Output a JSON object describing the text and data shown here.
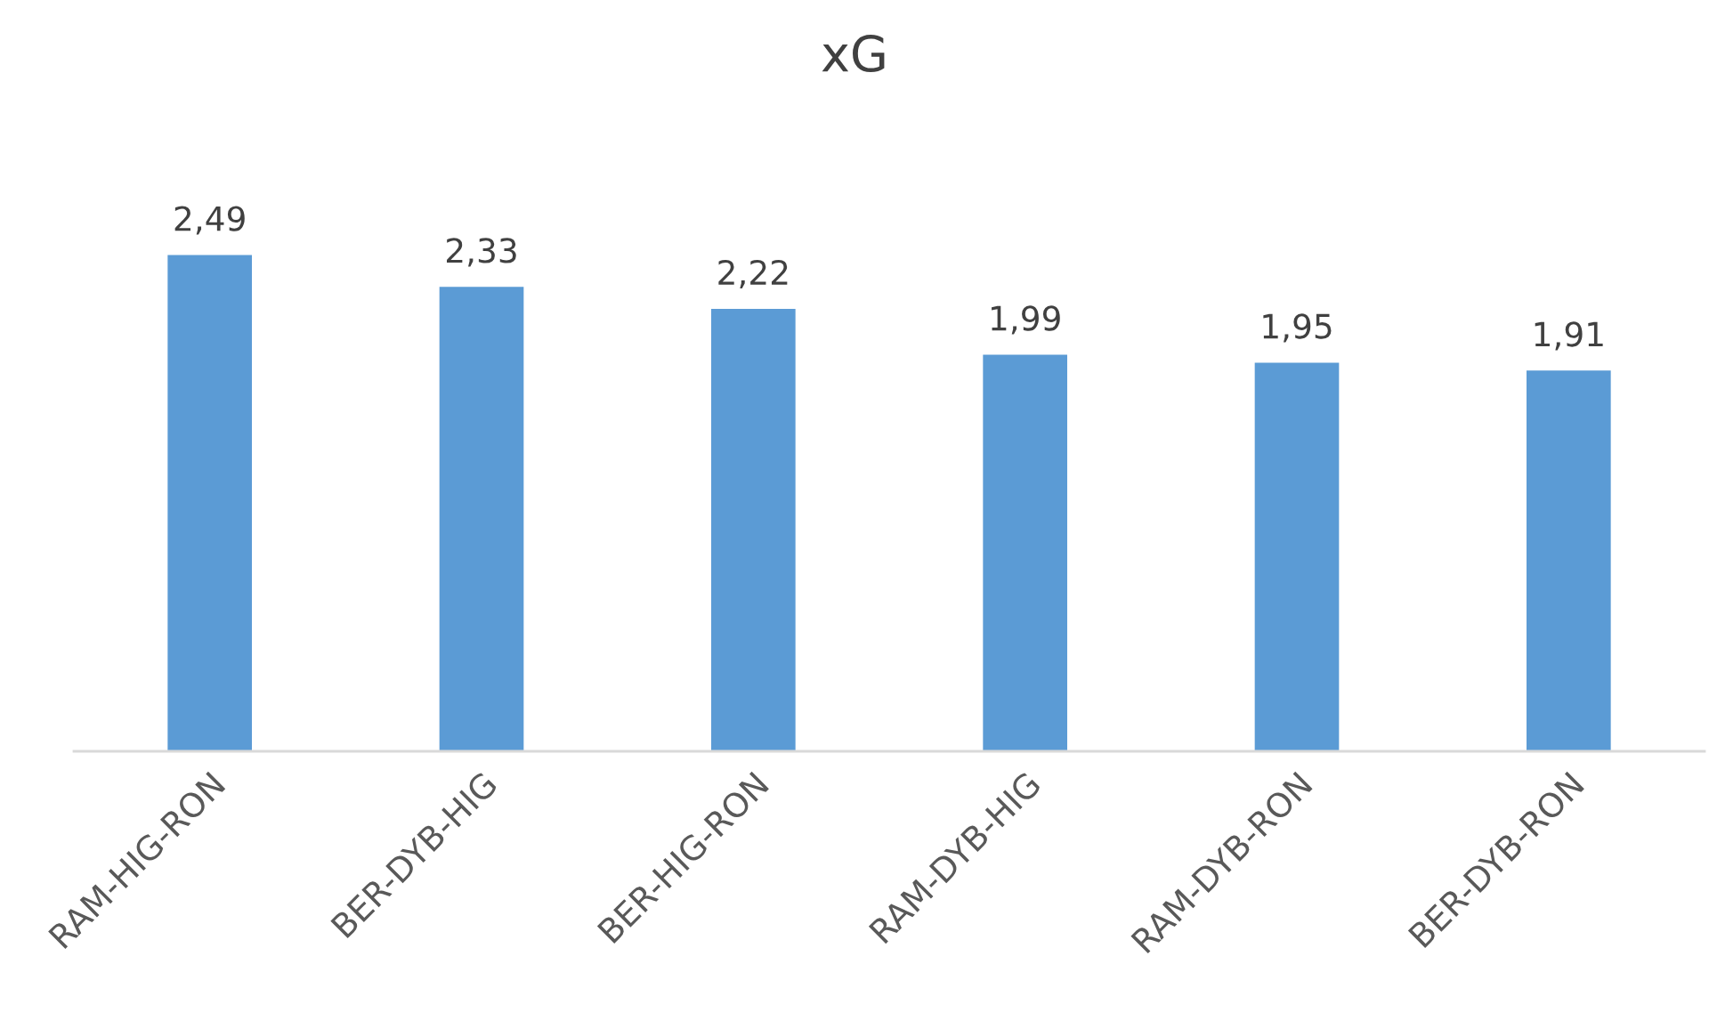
{
  "chart_data": {
    "type": "bar",
    "title": "xG",
    "categories": [
      "RAM-HIG-RON",
      "BER-DYB-HIG",
      "BER-HIG-RON",
      "RAM-DYB-HIG",
      "RAM-DYB-RON",
      "BER-DYB-RON"
    ],
    "values": [
      2.49,
      2.33,
      2.22,
      1.99,
      1.95,
      1.91
    ],
    "value_labels": [
      "2,49",
      "2,33",
      "2,22",
      "1,99",
      "1,95",
      "1,91"
    ],
    "color": "#5b9bd5",
    "grid": false,
    "legend": false
  }
}
